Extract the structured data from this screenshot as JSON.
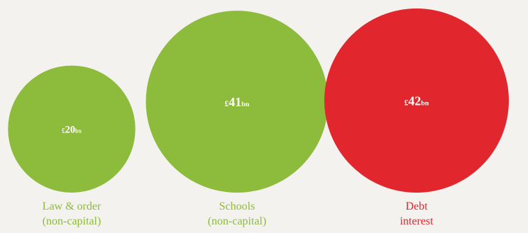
{
  "chart_data": {
    "type": "bubble",
    "unit_prefix": "£",
    "unit_suffix": "bn",
    "items": [
      {
        "label_lines": [
          "Law & order",
          "(non-capital)"
        ],
        "value": 20,
        "value_text": "20",
        "color": "#8dbb3b"
      },
      {
        "label_lines": [
          "Schools",
          "(non-capital)"
        ],
        "value": 41,
        "value_text": "41",
        "color": "#8dbb3b"
      },
      {
        "label_lines": [
          "Debt",
          "interest"
        ],
        "value": 42,
        "value_text": "42",
        "color": "#e2262d"
      }
    ]
  },
  "colors": {
    "background": "#f3f2ee",
    "spending_green": "#8dbb3b",
    "debt_red": "#e2262d"
  }
}
